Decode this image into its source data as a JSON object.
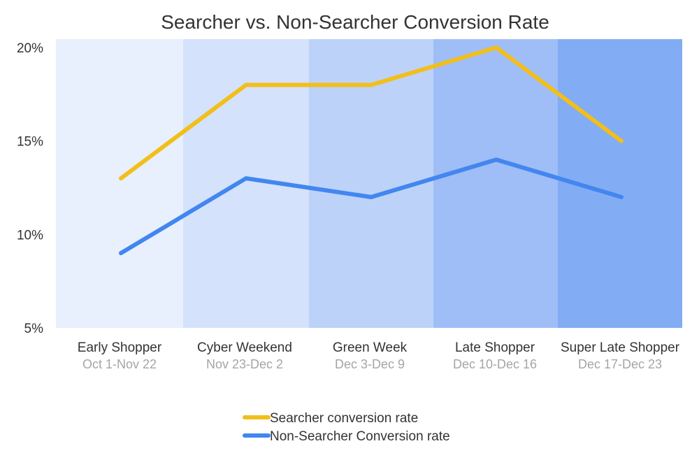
{
  "chart_data": {
    "type": "line",
    "title": "Searcher vs. Non-Searcher Conversion Rate",
    "xlabel": "",
    "ylabel": "",
    "ylim": [
      5,
      20
    ],
    "y_ticks": [
      "5%",
      "10%",
      "15%",
      "20%"
    ],
    "y_tick_values": [
      5,
      10,
      15,
      20
    ],
    "categories": [
      "Early Shopper",
      "Cyber Weekend",
      "Green Week",
      "Late Shopper",
      "Super Late Shopper"
    ],
    "category_dates": [
      "Oct 1-Nov 22",
      "Nov 23-Dec 2",
      "Dec 3-Dec 9",
      "Dec 10-Dec 16",
      "Dec 17-Dec 23"
    ],
    "band_colors": [
      "#e8effd",
      "#d4e2fb",
      "#bdd2f9",
      "#9fbdf6",
      "#82acf4"
    ],
    "series": [
      {
        "name": "Searcher conversion rate",
        "color": "#f2bf1a",
        "values": [
          13,
          18,
          18,
          20,
          15
        ]
      },
      {
        "name": "Non-Searcher Conversion rate",
        "color": "#4286f0",
        "values": [
          9,
          13,
          12,
          14,
          12
        ]
      }
    ],
    "legend_position": "bottom-center",
    "grid": false
  }
}
